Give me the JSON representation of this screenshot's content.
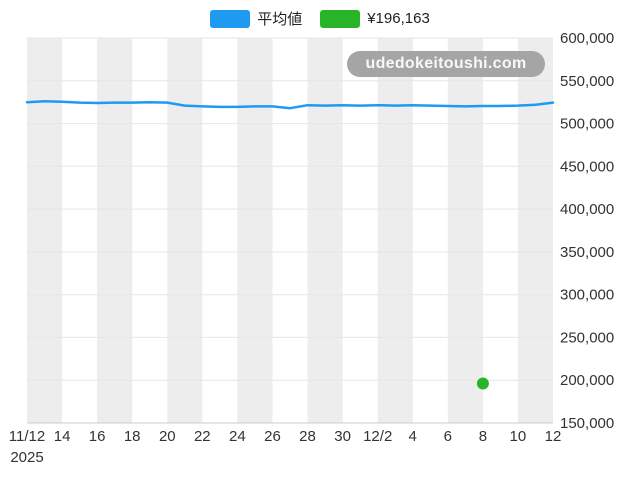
{
  "legend": {
    "items": [
      {
        "label": "平均値",
        "color": "#1e9bf0"
      },
      {
        "label": "¥196,163",
        "color": "#28b428"
      }
    ]
  },
  "watermark": {
    "text": "udedokeitoushi.com"
  },
  "chart_data": {
    "type": "line",
    "title": "",
    "x_year_label": "2025",
    "x_tick_labels": [
      "11/12",
      "14",
      "16",
      "18",
      "20",
      "22",
      "24",
      "26",
      "28",
      "30",
      "12/2",
      "4",
      "6",
      "8",
      "10",
      "12"
    ],
    "x_days": 31,
    "ylim": [
      150000,
      600000
    ],
    "y_ticks": [
      150000,
      200000,
      250000,
      300000,
      350000,
      400000,
      450000,
      500000,
      550000,
      600000
    ],
    "y_tick_labels": [
      "150,000",
      "200,000",
      "250,000",
      "300,000",
      "350,000",
      "400,000",
      "450,000",
      "500,000",
      "550,000",
      "600,000"
    ],
    "grid": true,
    "band_color": "#ededed",
    "gridline_color": "#e6e6e6",
    "axis_line_color": "#cccccc",
    "legend_position": "top",
    "series": [
      {
        "name": "平均値",
        "type": "line",
        "color": "#1e9bf0",
        "values": [
          525000,
          526000,
          525500,
          524500,
          524000,
          524500,
          524500,
          525000,
          524500,
          521000,
          520000,
          519500,
          519500,
          520000,
          520000,
          518000,
          521500,
          521000,
          521500,
          521000,
          521500,
          521000,
          521500,
          521000,
          520500,
          520000,
          520500,
          520500,
          521000,
          522000,
          524500
        ]
      },
      {
        "name": "¥196,163",
        "type": "scatter",
        "color": "#28b428",
        "points": [
          {
            "x_index": 26,
            "x_label": "12/8",
            "y": 196163
          }
        ]
      }
    ]
  }
}
